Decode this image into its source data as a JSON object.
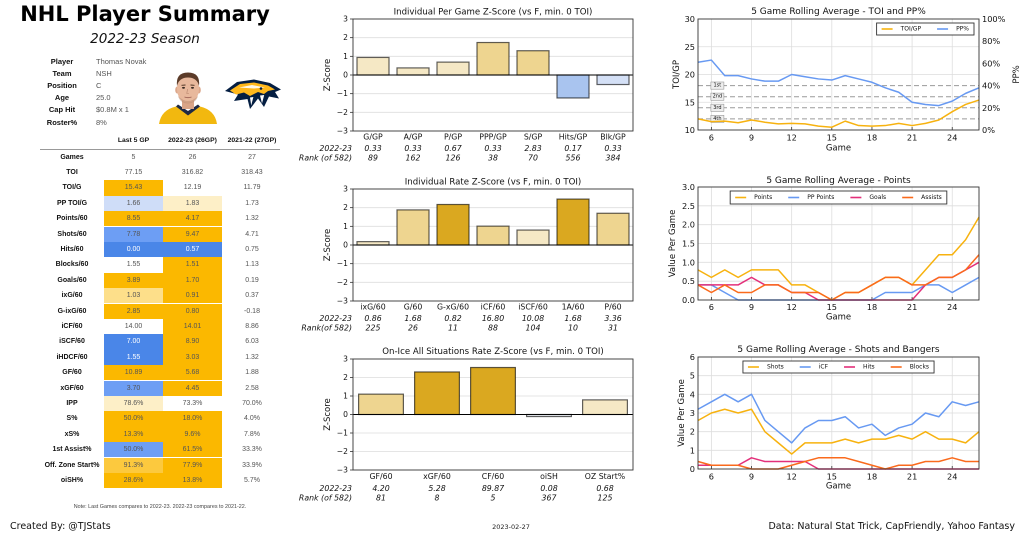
{
  "header": {
    "title": "NHL Player Summary",
    "subtitle": "2022-23 Season"
  },
  "player_info": [
    {
      "label": "Player",
      "value": "Thomas Novak"
    },
    {
      "label": "Team",
      "value": "NSH"
    },
    {
      "label": "Position",
      "value": "C"
    },
    {
      "label": "Age",
      "value": "25.0"
    },
    {
      "label": "Cap Hit",
      "value": "$0.8M x 1"
    },
    {
      "label": "Roster%",
      "value": "8%"
    }
  ],
  "images": {
    "player_photo": "player-headshot-image",
    "team_logo": "nashville-predators-logo"
  },
  "stats_table": {
    "columns": [
      "Last 5 GP",
      "2022-23 (26GP)",
      "2021-22 (27GP)"
    ],
    "rows": [
      {
        "label": "Games",
        "values": [
          "5",
          "26",
          "27"
        ],
        "colors": [
          "",
          "",
          ""
        ]
      },
      {
        "label": "TOI",
        "values": [
          "77.15",
          "316.82",
          "318.43"
        ],
        "colors": [
          "",
          "",
          ""
        ]
      },
      {
        "label": "TOI/G",
        "values": [
          "15.43",
          "12.19",
          "11.79"
        ],
        "colors": [
          "#FBB800",
          "",
          ""
        ]
      },
      {
        "label": "PP TOI/G",
        "values": [
          "1.66",
          "1.83",
          "1.73"
        ],
        "colors": [
          "#CFDDF8",
          "#FDEFC7",
          ""
        ]
      },
      {
        "label": "Points/60",
        "values": [
          "8.55",
          "4.17",
          "1.32"
        ],
        "colors": [
          "#FBB800",
          "#FBB800",
          ""
        ]
      },
      {
        "label": "Shots/60",
        "values": [
          "7.78",
          "9.47",
          "4.71"
        ],
        "colors": [
          "#6D9EF4",
          "#FBB800",
          ""
        ]
      },
      {
        "label": "Hits/60",
        "values": [
          "0.00",
          "0.57",
          "0.75"
        ],
        "colors": [
          "#4A86E8",
          "#4A86E8",
          ""
        ]
      },
      {
        "label": "Blocks/60",
        "values": [
          "1.55",
          "1.51",
          "1.13"
        ],
        "colors": [
          "",
          "#FBB800",
          ""
        ]
      },
      {
        "label": "Goals/60",
        "values": [
          "3.89",
          "1.70",
          "0.19"
        ],
        "colors": [
          "#FBB800",
          "#FBB800",
          ""
        ]
      },
      {
        "label": "ixG/60",
        "values": [
          "1.03",
          "0.91",
          "0.37"
        ],
        "colors": [
          "#FDDF8A",
          "#FBB800",
          ""
        ]
      },
      {
        "label": "G-ixG/60",
        "values": [
          "2.85",
          "0.80",
          "-0.18"
        ],
        "colors": [
          "#FBB800",
          "#FBB800",
          ""
        ]
      },
      {
        "label": "iCF/60",
        "values": [
          "14.00",
          "14.01",
          "8.86"
        ],
        "colors": [
          "",
          "#FBB800",
          ""
        ]
      },
      {
        "label": "iSCF/60",
        "values": [
          "7.00",
          "8.90",
          "6.03"
        ],
        "colors": [
          "#4A86E8",
          "#FBB800",
          ""
        ]
      },
      {
        "label": "iHDCF/60",
        "values": [
          "1.55",
          "3.03",
          "1.32"
        ],
        "colors": [
          "#4A86E8",
          "#FBB800",
          ""
        ]
      },
      {
        "label": "GF/60",
        "values": [
          "10.89",
          "5.68",
          "1.88"
        ],
        "colors": [
          "#FBB800",
          "#FBB800",
          ""
        ]
      },
      {
        "label": "xGF/60",
        "values": [
          "3.70",
          "4.45",
          "2.58"
        ],
        "colors": [
          "#6D9EF4",
          "#FBB800",
          ""
        ]
      },
      {
        "label": "IPP",
        "values": [
          "78.6%",
          "73.3%",
          "70.0%"
        ],
        "colors": [
          "#FDEFC7",
          "",
          ""
        ]
      },
      {
        "label": "S%",
        "values": [
          "50.0%",
          "18.0%",
          "4.0%"
        ],
        "colors": [
          "#FBB800",
          "#FBB800",
          ""
        ]
      },
      {
        "label": "xS%",
        "values": [
          "13.3%",
          "9.6%",
          "7.8%"
        ],
        "colors": [
          "#FBB800",
          "#FBB800",
          ""
        ]
      },
      {
        "label": "1st Assist%",
        "values": [
          "50.0%",
          "61.5%",
          "33.3%"
        ],
        "colors": [
          "#6D9EF4",
          "#FBB800",
          ""
        ]
      },
      {
        "label": "Off. Zone Start%",
        "values": [
          "91.3%",
          "77.9%",
          "33.9%"
        ],
        "colors": [
          "#FCC93E",
          "#FBB800",
          ""
        ]
      },
      {
        "label": "oiSH%",
        "values": [
          "28.6%",
          "13.8%",
          "5.7%"
        ],
        "colors": [
          "#FBB800",
          "#FBB800",
          ""
        ]
      }
    ],
    "note": "Note: Last Games compares to 2022-23. 2022-23 compares to 2021-22."
  },
  "footer": {
    "created_by": "Created By: @TJStats",
    "date": "2023-02-27",
    "source": "Data: Natural Stat Trick, CapFriendly, Yahoo Fantasy"
  },
  "chart_data": [
    {
      "type": "bar",
      "title": "Individual Per Game Z-Score (vs F, min. 0 TOI)",
      "ylabel": "Z-Score",
      "xlabel": "",
      "ylim": [
        -3,
        3
      ],
      "yticks": [
        3,
        2,
        1,
        0,
        -1,
        -2,
        -3
      ],
      "ytick_labels": [
        "3",
        "2",
        "1",
        "0",
        "−1",
        "−2",
        "−3"
      ],
      "grid": true,
      "categories": [
        "G/GP",
        "A/GP",
        "P/GP",
        "PPP/GP",
        "S/GP",
        "Hits/GP",
        "Blk/GP"
      ],
      "values": [
        0.94,
        0.38,
        0.69,
        1.74,
        1.3,
        -1.23,
        -0.51
      ],
      "colors": [
        "#F5E8C5",
        "#F5E8C5",
        "#F5E8C5",
        "#EED590",
        "#EED590",
        "#A9C4EF",
        "#D4E0F6"
      ],
      "row_labels": [
        "2022-23",
        "Rank (of 582)"
      ],
      "season_values": [
        "0.33",
        "0.33",
        "0.67",
        "0.33",
        "2.83",
        "0.17",
        "0.33"
      ],
      "ranks": [
        "89",
        "162",
        "126",
        "38",
        "70",
        "556",
        "384"
      ]
    },
    {
      "type": "bar",
      "title": "Individual Rate Z-Score (vs F, min. 0 TOI)",
      "ylabel": "Z-Score",
      "xlabel": "",
      "ylim": [
        -3,
        3
      ],
      "yticks": [
        3,
        2,
        1,
        0,
        -1,
        -2,
        -3
      ],
      "ytick_labels": [
        "3",
        "2",
        "1",
        "0",
        "−1",
        "−2",
        "−3"
      ],
      "grid": true,
      "categories": [
        "ixG/60",
        "G/60",
        "G-xG/60",
        "iCF/60",
        "iSCF/60",
        "1A/60",
        "P/60"
      ],
      "values": [
        0.18,
        1.88,
        2.17,
        1.01,
        0.8,
        2.46,
        1.7
      ],
      "colors": [
        "#F5E8C5",
        "#EED590",
        "#DAA820",
        "#EED590",
        "#F5E8C5",
        "#DAA820",
        "#EED590"
      ],
      "row_labels": [
        "2022-23",
        "Rank(of 582)"
      ],
      "season_values": [
        "0.86",
        "1.68",
        "0.82",
        "16.80",
        "10.08",
        "1.68",
        "3.36"
      ],
      "ranks": [
        "225",
        "26",
        "11",
        "88",
        "104",
        "10",
        "31"
      ]
    },
    {
      "type": "bar",
      "title": "On-Ice All Situations Rate Z-Score (vs F, min. 0 TOI)",
      "ylabel": "Z-Score",
      "xlabel": "",
      "ylim": [
        -3,
        3
      ],
      "yticks": [
        3,
        2,
        1,
        0,
        -1,
        -2,
        -3
      ],
      "ytick_labels": [
        "3",
        "2",
        "1",
        "0",
        "−1",
        "−2",
        "−3"
      ],
      "grid": true,
      "categories": [
        "GF/60",
        "xGF/60",
        "CF/60",
        "oiSH",
        "OZ Start%"
      ],
      "values": [
        1.1,
        2.3,
        2.54,
        -0.11,
        0.79
      ],
      "colors": [
        "#EED590",
        "#DAA820",
        "#DAA820",
        "#F2F5FB",
        "#F5E8C5"
      ],
      "row_labels": [
        "2022-23",
        "Rank (of 582)"
      ],
      "season_values": [
        "4.20",
        "5.28",
        "89.87",
        "0.08",
        "0.68"
      ],
      "ranks": [
        "81",
        "8",
        "5",
        "367",
        "125"
      ]
    },
    {
      "type": "line",
      "title": "5 Game Rolling Average - TOI and PP%",
      "xlabel": "Game",
      "ylabel": "TOI/GP",
      "y2label": "PP%",
      "xlim": [
        5,
        26
      ],
      "ylim": [
        10,
        30
      ],
      "y2lim": [
        0,
        100
      ],
      "xticks": [
        6,
        9,
        12,
        15,
        18,
        21,
        24
      ],
      "xtick_labels": [
        "6",
        "9",
        "12",
        "15",
        "18",
        "21",
        "24"
      ],
      "yticks": [
        30,
        25,
        20,
        15,
        10
      ],
      "ytick_labels": [
        "30",
        "25",
        "20",
        "15",
        "10"
      ],
      "y2ticks": [
        100,
        80,
        60,
        40,
        20,
        0
      ],
      "y2tick_labels": [
        "100%",
        "80%",
        "60%",
        "40%",
        "20%",
        "0%"
      ],
      "grid": true,
      "legend": "top-right",
      "x": [
        5,
        6,
        7,
        8,
        9,
        10,
        11,
        12,
        13,
        14,
        15,
        16,
        17,
        18,
        19,
        20,
        21,
        22,
        23,
        24,
        25,
        26
      ],
      "series": [
        {
          "name": "TOI/GP",
          "color": "#F7B20F",
          "axis": "left",
          "values": [
            12.0,
            11.5,
            11.6,
            11.3,
            11.8,
            11.4,
            11.1,
            11.2,
            11.1,
            10.7,
            10.5,
            11.6,
            10.8,
            10.7,
            10.8,
            11.2,
            10.8,
            11.2,
            11.8,
            13.3,
            14.6,
            15.4
          ]
        },
        {
          "name": "PP%",
          "color": "#6799F2",
          "axis": "right",
          "values": [
            61,
            63,
            49,
            49,
            46,
            44,
            44,
            50,
            48,
            46,
            45,
            49,
            46,
            43,
            38,
            34,
            25,
            23,
            22,
            26,
            33,
            38
          ]
        }
      ],
      "reference_lines": [
        {
          "y": 18,
          "label": "1st"
        },
        {
          "y": 16,
          "label": "2nd"
        },
        {
          "y": 14,
          "label": "3rd"
        },
        {
          "y": 12,
          "label": "4th"
        }
      ]
    },
    {
      "type": "line",
      "title": "5 Game Rolling Average - Points",
      "xlabel": "Game",
      "ylabel": "Value Per Game",
      "xlim": [
        5,
        26
      ],
      "ylim": [
        0,
        3
      ],
      "xticks": [
        6,
        9,
        12,
        15,
        18,
        21,
        24
      ],
      "xtick_labels": [
        "6",
        "9",
        "12",
        "15",
        "18",
        "21",
        "24"
      ],
      "yticks": [
        3.0,
        2.5,
        2.0,
        1.5,
        1.0,
        0.5,
        0.0
      ],
      "ytick_labels": [
        "3.0",
        "2.5",
        "2.0",
        "1.5",
        "1.0",
        "0.5",
        "0.0"
      ],
      "grid": true,
      "legend": "top-center",
      "x": [
        5,
        6,
        7,
        8,
        9,
        10,
        11,
        12,
        13,
        14,
        15,
        16,
        17,
        18,
        19,
        20,
        21,
        22,
        23,
        24,
        25,
        26
      ],
      "series": [
        {
          "name": "Points",
          "color": "#F7B20F",
          "values": [
            0.8,
            0.6,
            0.8,
            0.6,
            0.8,
            0.8,
            0.8,
            0.4,
            0.4,
            0.2,
            0.0,
            0.2,
            0.2,
            0.4,
            0.6,
            0.6,
            0.4,
            0.8,
            1.2,
            1.2,
            1.6,
            2.2
          ]
        },
        {
          "name": "PP Points",
          "color": "#6799F2",
          "values": [
            0.4,
            0.4,
            0.2,
            0.0,
            0.0,
            0.0,
            0.0,
            0.0,
            0.0,
            0.0,
            0.0,
            0.0,
            0.0,
            0.0,
            0.2,
            0.2,
            0.2,
            0.4,
            0.4,
            0.2,
            0.4,
            0.6
          ]
        },
        {
          "name": "Goals",
          "color": "#E3307A",
          "values": [
            0.4,
            0.4,
            0.4,
            0.4,
            0.6,
            0.4,
            0.4,
            0.2,
            0.2,
            0.0,
            0.0,
            0.0,
            0.0,
            0.0,
            0.0,
            0.0,
            0.0,
            0.4,
            0.6,
            0.6,
            0.8,
            1.0
          ]
        },
        {
          "name": "Assists",
          "color": "#FA6A1C",
          "values": [
            0.4,
            0.2,
            0.4,
            0.2,
            0.2,
            0.4,
            0.4,
            0.2,
            0.2,
            0.2,
            0.0,
            0.2,
            0.2,
            0.4,
            0.6,
            0.6,
            0.4,
            0.4,
            0.6,
            0.6,
            0.8,
            1.2
          ]
        }
      ]
    },
    {
      "type": "line",
      "title": "5 Game Rolling Average - Shots and Bangers",
      "xlabel": "Game",
      "ylabel": "Value Per Game",
      "xlim": [
        5,
        26
      ],
      "ylim": [
        0,
        6
      ],
      "xticks": [
        6,
        9,
        12,
        15,
        18,
        21,
        24
      ],
      "xtick_labels": [
        "6",
        "9",
        "12",
        "15",
        "18",
        "21",
        "24"
      ],
      "yticks": [
        6,
        5,
        4,
        3,
        2,
        1,
        0
      ],
      "ytick_labels": [
        "6",
        "5",
        "4",
        "3",
        "2",
        "1",
        "0"
      ],
      "grid": true,
      "legend": "top-center",
      "x": [
        5,
        6,
        7,
        8,
        9,
        10,
        11,
        12,
        13,
        14,
        15,
        16,
        17,
        18,
        19,
        20,
        21,
        22,
        23,
        24,
        25,
        26
      ],
      "series": [
        {
          "name": "Shots",
          "color": "#F7B20F",
          "values": [
            2.6,
            3.0,
            3.2,
            3.0,
            3.2,
            2.0,
            1.4,
            0.8,
            1.4,
            1.4,
            1.4,
            1.6,
            1.4,
            1.6,
            1.6,
            1.8,
            1.6,
            2.0,
            1.6,
            1.6,
            1.4,
            2.0
          ]
        },
        {
          "name": "iCF",
          "color": "#6799F2",
          "values": [
            3.2,
            3.6,
            4.0,
            3.6,
            4.0,
            2.6,
            2.0,
            1.4,
            2.2,
            2.6,
            2.6,
            2.8,
            2.2,
            2.4,
            1.8,
            2.2,
            2.4,
            3.0,
            2.8,
            3.6,
            3.4,
            3.6
          ]
        },
        {
          "name": "Hits",
          "color": "#E3307A",
          "values": [
            0.2,
            0.2,
            0.2,
            0.2,
            0.6,
            0.4,
            0.4,
            0.4,
            0.4,
            0.0,
            0.0,
            0.0,
            0.0,
            0.0,
            0.0,
            0.0,
            0.0,
            0.0,
            0.0,
            0.0,
            0.0,
            0.0
          ]
        },
        {
          "name": "Blocks",
          "color": "#FA6A1C",
          "values": [
            0.4,
            0.2,
            0.2,
            0.2,
            0.0,
            0.0,
            0.0,
            0.2,
            0.4,
            0.6,
            0.6,
            0.6,
            0.4,
            0.2,
            0.0,
            0.2,
            0.2,
            0.4,
            0.4,
            0.6,
            0.4,
            0.4
          ]
        }
      ]
    }
  ]
}
